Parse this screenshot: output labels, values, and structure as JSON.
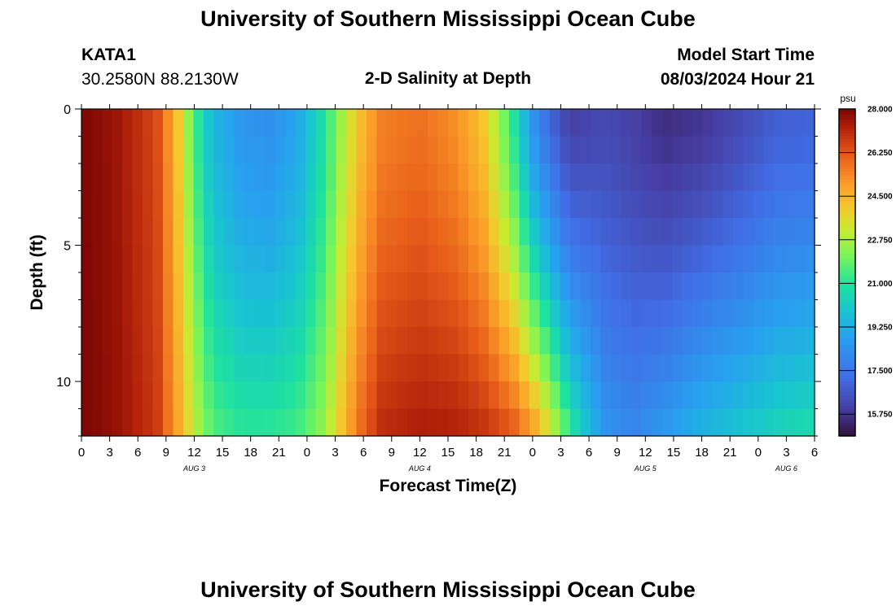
{
  "page": {
    "title": "University of Southern Mississippi Ocean Cube",
    "footer_title": "University of Southern Mississippi Ocean Cube",
    "station_id": "KATA1",
    "coordinates": "30.2580N  88.2130W",
    "plot_title": "2-D Salinity at Depth",
    "model_start_label": "Model Start Time",
    "model_start_value": "08/03/2024 Hour 21"
  },
  "chart_data": {
    "type": "heatmap",
    "title": "2-D Salinity at Depth",
    "xlabel": "Forecast Time(Z)",
    "ylabel": "Depth (ft)",
    "y_ticks": [
      0,
      5,
      10
    ],
    "ylim": [
      0,
      12
    ],
    "y_reversed": true,
    "x_tick_labels": [
      "0",
      "3",
      "6",
      "9",
      "12",
      "15",
      "18",
      "21",
      "0",
      "3",
      "6",
      "9",
      "12",
      "15",
      "18",
      "21",
      "0",
      "3",
      "6",
      "9",
      "12",
      "15",
      "18",
      "21",
      "0",
      "3",
      "6"
    ],
    "x_range_hours": [
      0,
      78
    ],
    "date_labels": [
      {
        "label": "AUG 3",
        "hour": 12
      },
      {
        "label": "AUG 4",
        "hour": 36
      },
      {
        "label": "AUG 5",
        "hour": 60
      },
      {
        "label": "AUG 6",
        "hour": 75
      }
    ],
    "colorbar": {
      "unit": "psu",
      "min": 14.875,
      "max": 28.0,
      "tick_labels": [
        "28.000",
        "26.250",
        "24.500",
        "22.750",
        "21.000",
        "19.250",
        "17.500",
        "15.750"
      ],
      "tick_values": [
        28.0,
        26.25,
        24.5,
        22.75,
        21.0,
        19.25,
        17.5,
        15.75
      ]
    },
    "depth_rows_ft": [
      0,
      1,
      2,
      3,
      4,
      5,
      6,
      7,
      8,
      9,
      10,
      11
    ],
    "profile_hours": [
      0,
      4,
      8,
      10,
      12,
      14,
      17,
      20,
      23,
      26,
      28,
      30,
      32,
      36,
      40,
      43,
      46,
      48,
      50,
      52,
      54,
      56,
      59,
      62,
      66,
      70,
      74,
      78
    ],
    "profile_top": [
      28,
      27.5,
      26.5,
      24.5,
      21.5,
      19.5,
      18.5,
      18.3,
      19,
      21,
      23,
      24.5,
      25.5,
      25.8,
      25.2,
      24,
      21,
      18.5,
      17,
      16,
      16.2,
      16.3,
      16,
      15.6,
      15.8,
      16.3,
      16.9,
      17
    ],
    "profile_bottom": [
      28,
      27.6,
      26.8,
      25,
      23,
      21.5,
      21,
      21,
      21.3,
      22.5,
      24.5,
      26,
      27,
      27.3,
      27.2,
      26.8,
      26,
      24.8,
      23,
      21,
      19.5,
      18.3,
      18,
      18.5,
      19.3,
      19.8,
      20.3,
      20.6
    ]
  }
}
